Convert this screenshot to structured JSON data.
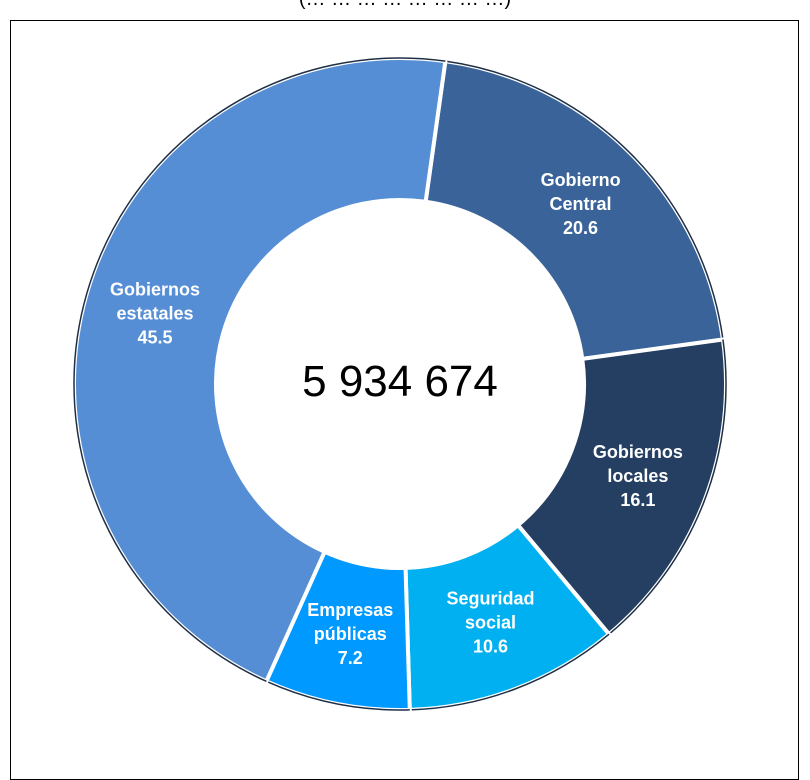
{
  "header": {
    "caption": "(… … … … … … … …)"
  },
  "chart_data": {
    "type": "pie",
    "style": "donut",
    "center_total": "5 934 674",
    "slices": [
      {
        "name": "Gobierno Central",
        "label_lines": [
          "Gobierno",
          "Central"
        ],
        "value": 20.6,
        "color": "#3A6499"
      },
      {
        "name": "Gobiernos locales",
        "label_lines": [
          "Gobiernos",
          "locales"
        ],
        "value": 16.1,
        "color": "#243F62"
      },
      {
        "name": "Seguridad social",
        "label_lines": [
          "Seguridad",
          "social"
        ],
        "value": 10.6,
        "color": "#00B0F0"
      },
      {
        "name": "Empresas públicas",
        "label_lines": [
          "Empresas",
          "públicas"
        ],
        "value": 7.2,
        "color": "#0099FF"
      },
      {
        "name": "Gobiernos estatales",
        "label_lines": [
          "Gobiernos",
          "estatales"
        ],
        "value": 45.5,
        "color": "#558ED5"
      }
    ]
  }
}
